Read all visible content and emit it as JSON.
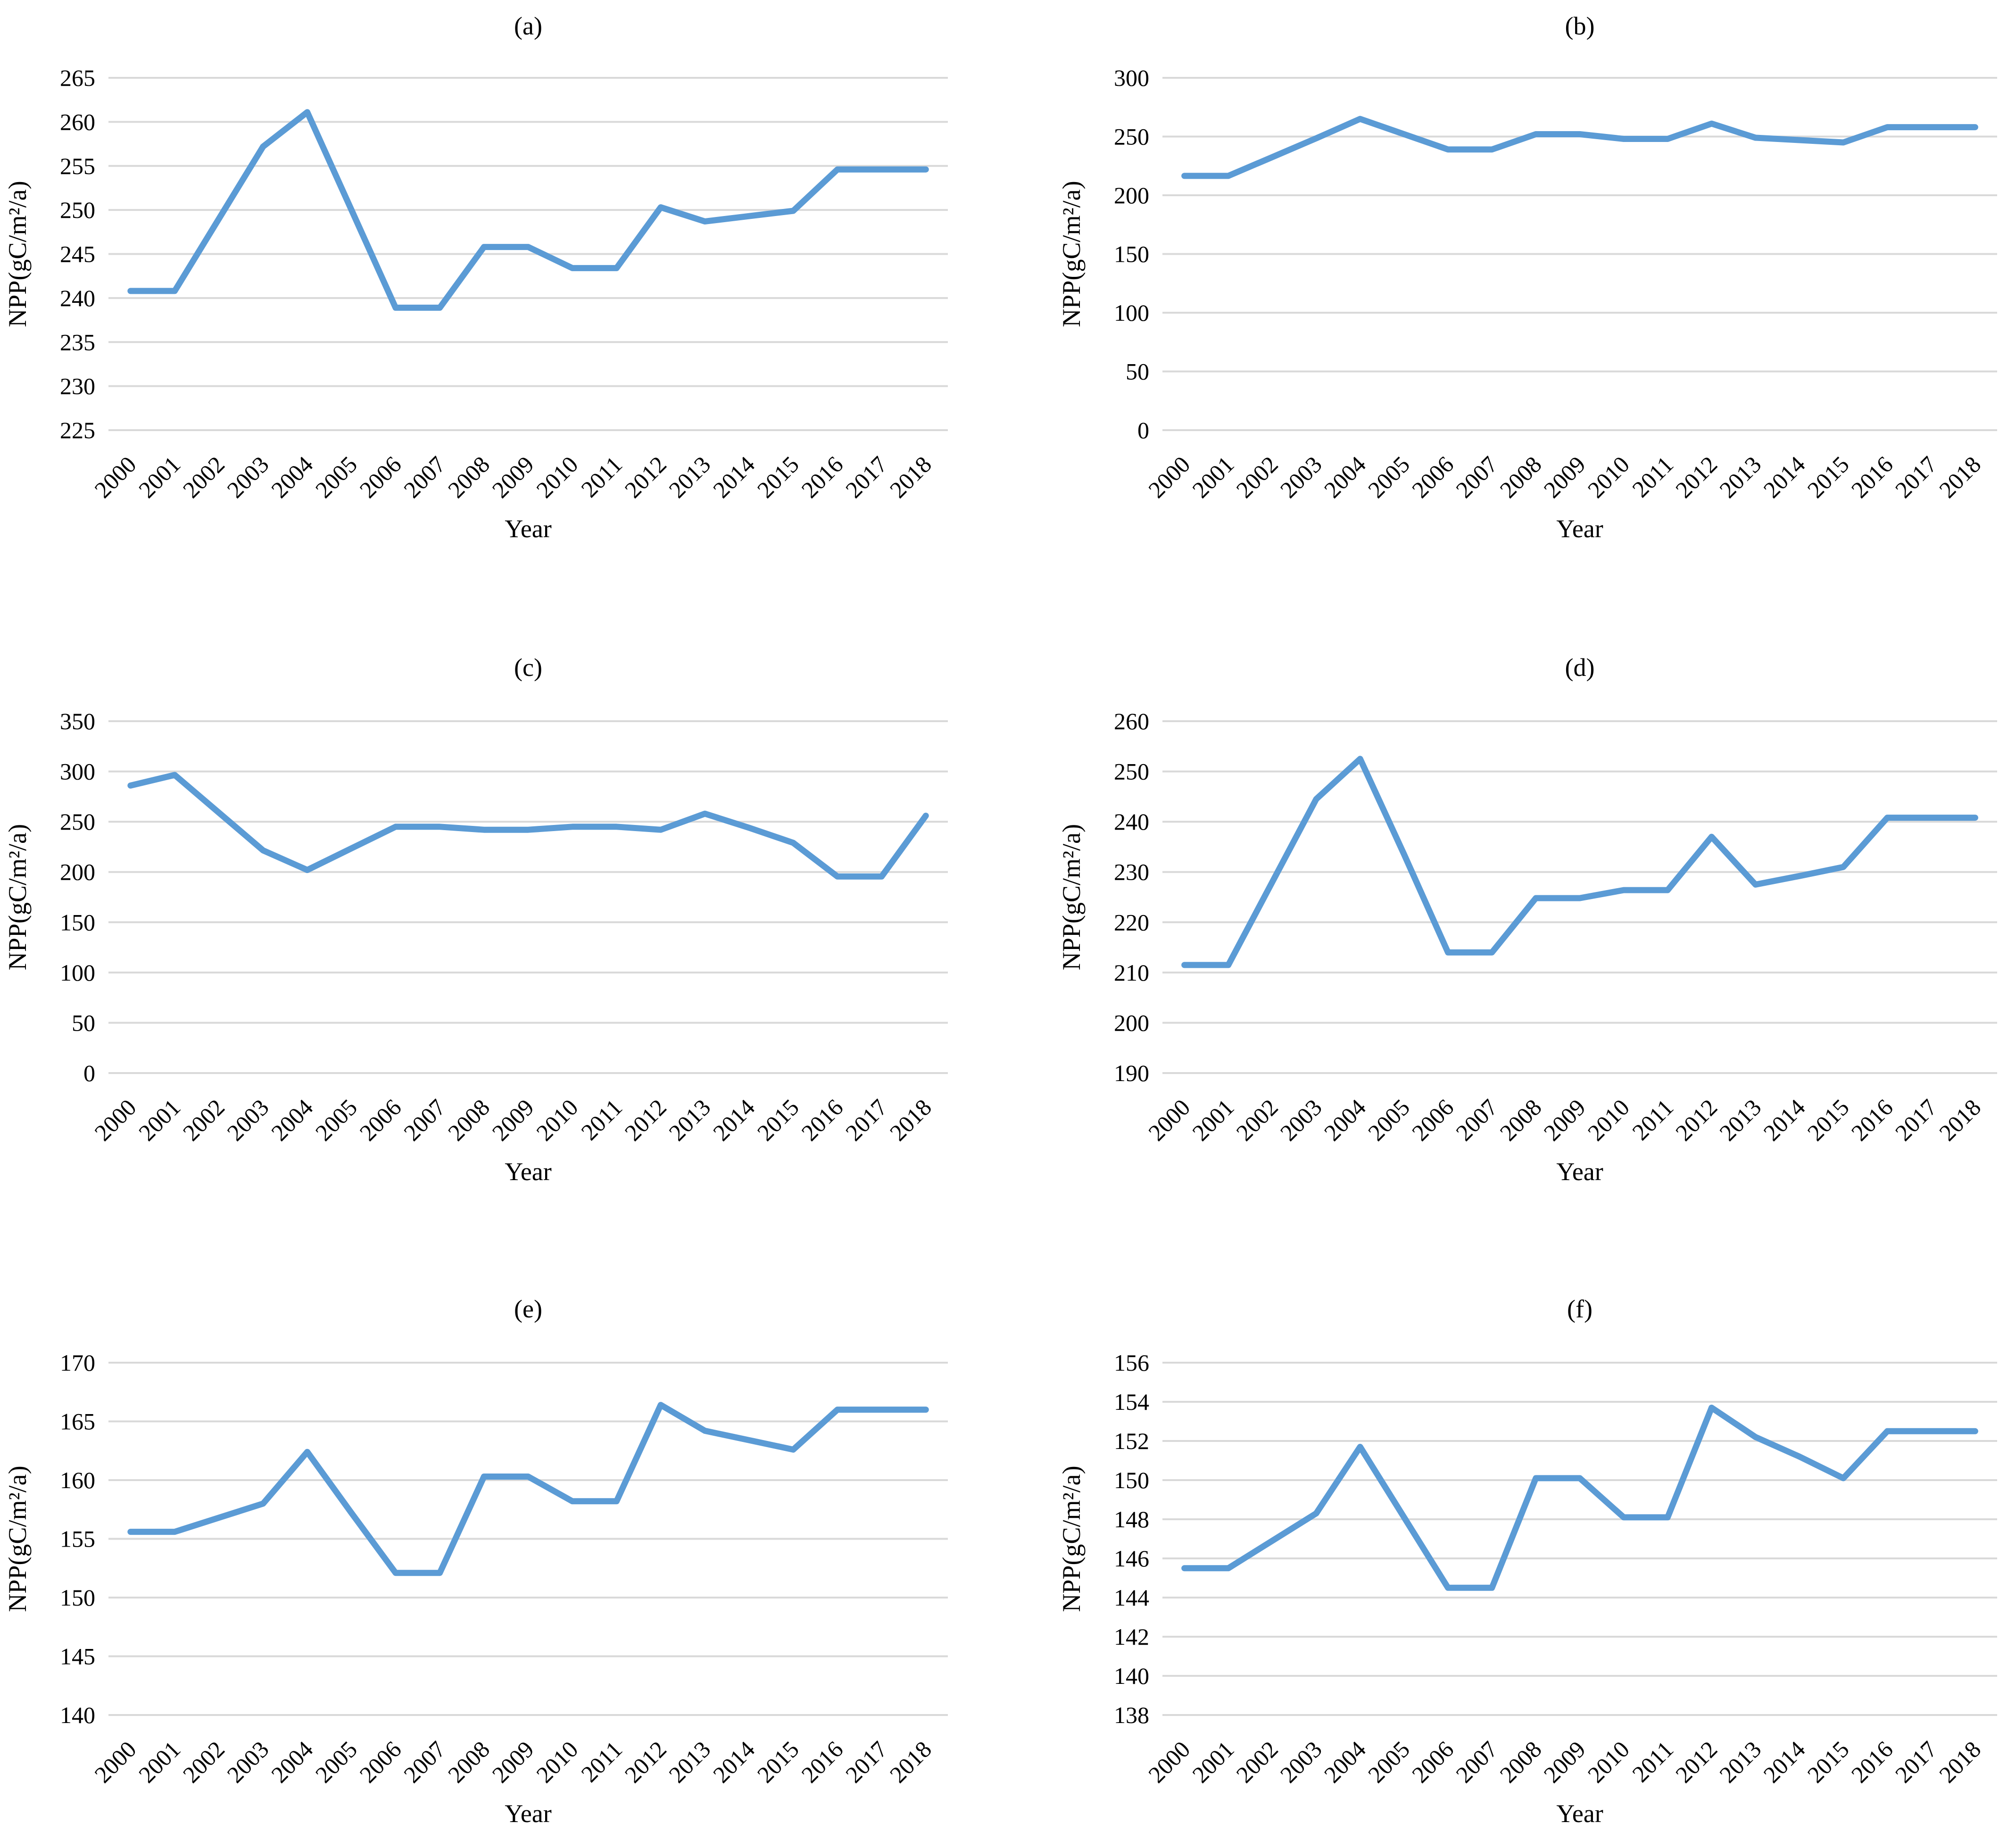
{
  "chart_data": [
    {
      "type": "line",
      "title": "(a)",
      "xlabel": "Year",
      "ylabel": "NPP(gC/m²/a)",
      "categories": [
        "2000",
        "2001",
        "2002",
        "2003",
        "2004",
        "2005",
        "2006",
        "2007",
        "2008",
        "2009",
        "2010",
        "2011",
        "2012",
        "2013",
        "2014",
        "2015",
        "2016",
        "2017",
        "2018"
      ],
      "values": [
        240.8,
        240.8,
        249.0,
        257.2,
        261.1,
        250.0,
        238.9,
        238.9,
        245.8,
        245.8,
        243.4,
        243.4,
        250.3,
        248.7,
        249.3,
        249.9,
        254.6,
        254.6,
        254.6
      ],
      "ylim": [
        225,
        265
      ],
      "yticks": [
        225,
        230,
        235,
        240,
        245,
        250,
        255,
        260,
        265
      ],
      "grid": true,
      "color": "#5b9bd5"
    },
    {
      "type": "line",
      "title": "(b)",
      "xlabel": "Year",
      "ylabel": "NPP(gC/m²/a)",
      "categories": [
        "2000",
        "2001",
        "2002",
        "2003",
        "2004",
        "2005",
        "2006",
        "2007",
        "2008",
        "2009",
        "2010",
        "2011",
        "2012",
        "2013",
        "2014",
        "2015",
        "2016",
        "2017",
        "2018"
      ],
      "values": [
        216.5,
        216.5,
        232.5,
        248.5,
        265.0,
        252.0,
        239.0,
        239.0,
        252.0,
        252.0,
        248.0,
        248.0,
        261.0,
        249.0,
        247.0,
        245.0,
        258.0,
        258.0,
        258.0
      ],
      "ylim": [
        0,
        300
      ],
      "yticks": [
        0,
        50,
        100,
        150,
        200,
        250,
        300
      ],
      "grid": true,
      "color": "#5b9bd5"
    },
    {
      "type": "line",
      "title": "(c)",
      "xlabel": "Year",
      "ylabel": "NPP(gC/m²/a)",
      "categories": [
        "2000",
        "2001",
        "2002",
        "2003",
        "2004",
        "2005",
        "2006",
        "2007",
        "2008",
        "2009",
        "2010",
        "2011",
        "2012",
        "2013",
        "2014",
        "2015",
        "2016",
        "2017",
        "2018"
      ],
      "values": [
        286.0,
        296.5,
        259.0,
        221.5,
        202.0,
        223.5,
        245.0,
        245.0,
        242.0,
        242.0,
        245.0,
        245.0,
        242.0,
        258.0,
        244.0,
        229.0,
        195.5,
        195.5,
        256.0
      ],
      "ylim": [
        0,
        350
      ],
      "yticks": [
        0,
        50,
        100,
        150,
        200,
        250,
        300,
        350
      ],
      "grid": true,
      "color": "#5b9bd5"
    },
    {
      "type": "line",
      "title": "(d)",
      "xlabel": "Year",
      "ylabel": "NPP(gC/m²/a)",
      "categories": [
        "2000",
        "2001",
        "2002",
        "2003",
        "2004",
        "2005",
        "2006",
        "2007",
        "2008",
        "2009",
        "2010",
        "2011",
        "2012",
        "2013",
        "2014",
        "2015",
        "2016",
        "2017",
        "2018"
      ],
      "values": [
        211.5,
        211.5,
        228.0,
        244.5,
        252.5,
        233.5,
        214.0,
        214.0,
        224.8,
        224.8,
        226.4,
        226.4,
        237.0,
        227.5,
        229.2,
        231.0,
        240.8,
        240.8,
        240.8
      ],
      "ylim": [
        190,
        260
      ],
      "yticks": [
        190,
        200,
        210,
        220,
        230,
        240,
        250,
        260
      ],
      "grid": true,
      "color": "#5b9bd5"
    },
    {
      "type": "line",
      "title": "(e)",
      "xlabel": "Year",
      "ylabel": "NPP(gC/m²/a)",
      "categories": [
        "2000",
        "2001",
        "2002",
        "2003",
        "2004",
        "2005",
        "2006",
        "2007",
        "2008",
        "2009",
        "2010",
        "2011",
        "2012",
        "2013",
        "2014",
        "2015",
        "2016",
        "2017",
        "2018"
      ],
      "values": [
        155.6,
        155.6,
        156.8,
        158.0,
        162.4,
        157.2,
        152.1,
        152.1,
        160.3,
        160.3,
        158.2,
        158.2,
        166.4,
        164.2,
        163.4,
        162.6,
        166.0,
        166.0,
        166.0
      ],
      "ylim": [
        140,
        170
      ],
      "yticks": [
        140,
        145,
        150,
        155,
        160,
        165,
        170
      ],
      "grid": true,
      "color": "#5b9bd5"
    },
    {
      "type": "line",
      "title": "(f)",
      "xlabel": "Year",
      "ylabel": "NPP(gC/m²/a)",
      "categories": [
        "2000",
        "2001",
        "2002",
        "2003",
        "2004",
        "2005",
        "2006",
        "2007",
        "2008",
        "2009",
        "2010",
        "2011",
        "2012",
        "2013",
        "2014",
        "2015",
        "2016",
        "2017",
        "2018"
      ],
      "values": [
        145.5,
        145.5,
        146.9,
        148.3,
        151.7,
        148.1,
        144.5,
        144.5,
        150.1,
        150.1,
        148.1,
        148.1,
        153.7,
        152.2,
        151.2,
        150.1,
        152.5,
        152.5,
        152.5
      ],
      "ylim": [
        138,
        156
      ],
      "yticks": [
        138,
        140,
        142,
        144,
        146,
        148,
        150,
        152,
        154,
        156
      ],
      "grid": true,
      "color": "#5b9bd5"
    }
  ]
}
